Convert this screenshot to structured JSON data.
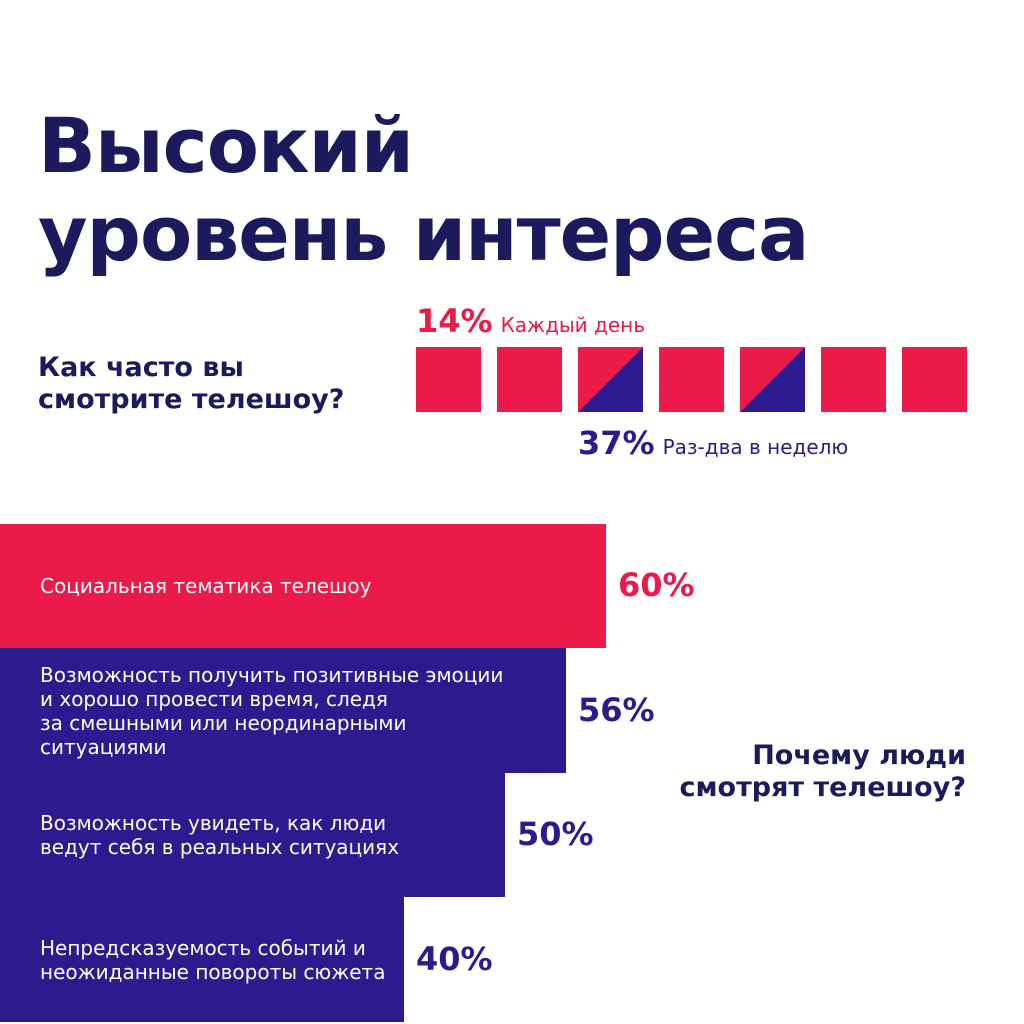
{
  "title": "Высокий\nуровень интереса",
  "frequency": {
    "question": "Как часто вы\nсмотрите телешоу?",
    "daily": {
      "percent": "14%",
      "label": "Каждый день"
    },
    "weekly": {
      "percent": "37%",
      "label": "Раз-два в неделю"
    },
    "squares": [
      "red",
      "red",
      "split",
      "red",
      "split",
      "red",
      "red"
    ]
  },
  "reasons": {
    "question": "Почему люди\nсмотрят телешоу?",
    "items": [
      {
        "label": "Социальная тематика телешоу",
        "percent": "60%",
        "value": 60
      },
      {
        "label": "Возможность получить позитивные эмоции\nи хорошо провести время, следя\nза смешными или неординарными\nситуациями",
        "percent": "56%",
        "value": 56
      },
      {
        "label": "Возможность увидеть, как люди\nведут себя в реальных ситуациях",
        "percent": "50%",
        "value": 50
      },
      {
        "label": "Непредсказуемость событий и\nнеожиданные повороты сюжета",
        "percent": "40%",
        "value": 40
      }
    ]
  },
  "colors": {
    "red": "#ec1a48",
    "navy": "#2b1b8e",
    "dark": "#1b1a5c"
  },
  "chart_data": {
    "type": "bar",
    "orientation": "horizontal",
    "categories": [
      "Социальная тематика телешоу",
      "Возможность получить позитивные эмоции и хорошо провести время, следя за смешными или неординарными ситуациями",
      "Возможность увидеть, как люди ведут себя в реальных ситуациях",
      "Непредсказуемость событий и неожиданные повороты сюжета"
    ],
    "values": [
      60,
      56,
      50,
      40
    ],
    "title": "Почему люди смотрят телешоу?"
  }
}
